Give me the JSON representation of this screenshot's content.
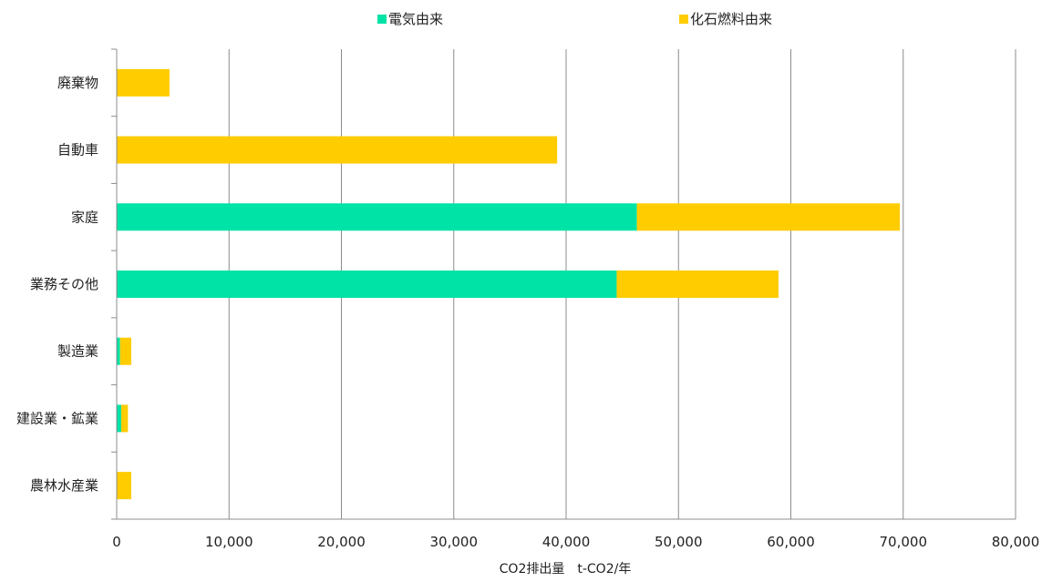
{
  "chart_data": {
    "type": "bar",
    "orientation": "horizontal",
    "stacked": true,
    "categories": [
      "廃棄物",
      "自動車",
      "家庭",
      "業務その他",
      "製造業",
      "建設業・鉱業",
      "農林水産業"
    ],
    "series": [
      {
        "name": "電気由来",
        "color": "#00e3a6",
        "values": [
          0,
          0,
          46300,
          44500,
          300,
          400,
          0
        ]
      },
      {
        "name": "化石燃料由来",
        "color": "#ffcc00",
        "values": [
          4700,
          39200,
          23400,
          14400,
          1000,
          600,
          1300
        ]
      }
    ],
    "xlabel": "CO2排出量　t-CO2/年",
    "xlim": [
      0,
      80000
    ],
    "xticks": [
      "0",
      "10,000",
      "20,000",
      "30,000",
      "40,000",
      "50,000",
      "60,000",
      "70,000",
      "80,000"
    ],
    "grid": "vertical",
    "legend_position": "top"
  }
}
